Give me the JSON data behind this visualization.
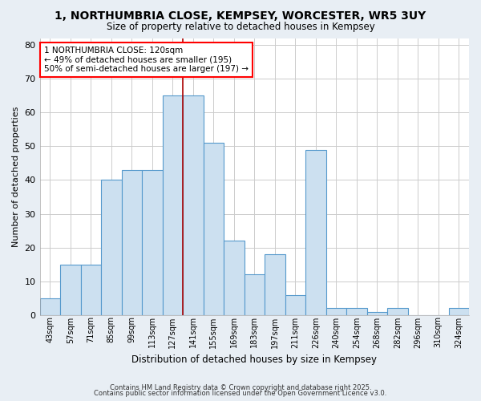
{
  "title": "1, NORTHUMBRIA CLOSE, KEMPSEY, WORCESTER, WR5 3UY",
  "subtitle": "Size of property relative to detached houses in Kempsey",
  "xlabel": "Distribution of detached houses by size in Kempsey",
  "ylabel": "Number of detached properties",
  "categories": [
    "43sqm",
    "57sqm",
    "71sqm",
    "85sqm",
    "99sqm",
    "113sqm",
    "127sqm",
    "141sqm",
    "155sqm",
    "169sqm",
    "183sqm",
    "197sqm",
    "211sqm",
    "226sqm",
    "240sqm",
    "254sqm",
    "268sqm",
    "282sqm",
    "296sqm",
    "310sqm",
    "324sqm"
  ],
  "values": [
    5,
    15,
    15,
    40,
    43,
    43,
    65,
    65,
    51,
    22,
    12,
    18,
    6,
    49,
    2,
    2,
    1,
    2,
    0,
    0,
    2
  ],
  "bar_color": "#cce0f0",
  "bar_edge_color": "#5599cc",
  "red_line_x": 6.5,
  "annotation_text": "1 NORTHUMBRIA CLOSE: 120sqm\n← 49% of detached houses are smaller (195)\n50% of semi-detached houses are larger (197) →",
  "annotation_box_color": "white",
  "annotation_box_edge_color": "red",
  "ylim": [
    0,
    82
  ],
  "yticks": [
    0,
    10,
    20,
    30,
    40,
    50,
    60,
    70,
    80
  ],
  "plot_bg_color": "white",
  "fig_bg_color": "#e8eef4",
  "grid_color": "#cccccc",
  "footer_line1": "Contains HM Land Registry data © Crown copyright and database right 2025.",
  "footer_line2": "Contains public sector information licensed under the Open Government Licence v3.0."
}
